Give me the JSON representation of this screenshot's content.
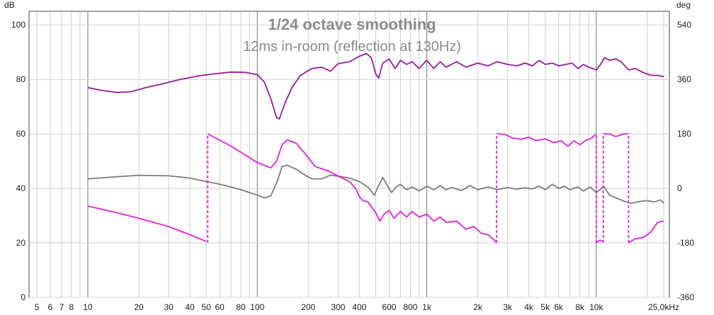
{
  "chart_data": {
    "type": "line",
    "title": "1/24 octave smoothing",
    "subtitle": "12ms in-room (reflection at 130Hz)",
    "left_unit": "dB",
    "right_unit": "deg",
    "xscale": "log",
    "xlim": [
      4.5,
      27000
    ],
    "ylim": [
      0,
      105
    ],
    "y2lim": [
      -360,
      585
    ],
    "grid": true,
    "x_ticks": [
      {
        "v": 5,
        "l": "5"
      },
      {
        "v": 6,
        "l": "6"
      },
      {
        "v": 7,
        "l": "7"
      },
      {
        "v": 8,
        "l": "8"
      },
      {
        "v": 10,
        "l": "10"
      },
      {
        "v": 20,
        "l": "20"
      },
      {
        "v": 30,
        "l": "30"
      },
      {
        "v": 40,
        "l": "40"
      },
      {
        "v": 50,
        "l": "50"
      },
      {
        "v": 60,
        "l": "60"
      },
      {
        "v": 80,
        "l": "80"
      },
      {
        "v": 100,
        "l": "100"
      },
      {
        "v": 200,
        "l": "200"
      },
      {
        "v": 300,
        "l": "300"
      },
      {
        "v": 400,
        "l": "400"
      },
      {
        "v": 600,
        "l": "600"
      },
      {
        "v": 800,
        "l": "800"
      },
      {
        "v": 1000,
        "l": "1k"
      },
      {
        "v": 2000,
        "l": "2k"
      },
      {
        "v": 3000,
        "l": "3k"
      },
      {
        "v": 4000,
        "l": "4k"
      },
      {
        "v": 5000,
        "l": "5k"
      },
      {
        "v": 6000,
        "l": "6k"
      },
      {
        "v": 8000,
        "l": "8k"
      },
      {
        "v": 10000,
        "l": "10k"
      },
      {
        "v": 25000,
        "l": "25,0kHz"
      }
    ],
    "y_ticks": [
      {
        "v": 0,
        "l": "0"
      },
      {
        "v": 20,
        "l": "20"
      },
      {
        "v": 40,
        "l": "40"
      },
      {
        "v": 60,
        "l": "60"
      },
      {
        "v": 80,
        "l": "80"
      },
      {
        "v": 100,
        "l": "100"
      }
    ],
    "y2_ticks": [
      {
        "v": -360,
        "l": "-360"
      },
      {
        "v": -180,
        "l": "-180"
      },
      {
        "v": 0,
        "l": "0"
      },
      {
        "v": 180,
        "l": "180"
      },
      {
        "v": 360,
        "l": "360"
      },
      {
        "v": 540,
        "l": "540"
      }
    ],
    "series": [
      {
        "color": "#9b1a9b",
        "axis": "left",
        "values": [
          [
            10,
            77
          ],
          [
            12,
            76
          ],
          [
            15,
            75.2
          ],
          [
            18,
            75.5
          ],
          [
            22,
            77
          ],
          [
            28,
            78.5
          ],
          [
            35,
            80
          ],
          [
            45,
            81.3
          ],
          [
            55,
            82
          ],
          [
            70,
            82.7
          ],
          [
            85,
            82.6
          ],
          [
            100,
            81.8
          ],
          [
            110,
            79
          ],
          [
            120,
            73
          ],
          [
            130,
            66
          ],
          [
            135,
            65.5
          ],
          [
            145,
            71
          ],
          [
            160,
            77
          ],
          [
            180,
            81.5
          ],
          [
            210,
            84
          ],
          [
            240,
            84.5
          ],
          [
            270,
            83
          ],
          [
            300,
            85.8
          ],
          [
            350,
            86.5
          ],
          [
            400,
            88.5
          ],
          [
            440,
            89.5
          ],
          [
            470,
            88
          ],
          [
            500,
            82
          ],
          [
            520,
            80.5
          ],
          [
            550,
            86
          ],
          [
            600,
            87.5
          ],
          [
            650,
            84
          ],
          [
            700,
            87
          ],
          [
            760,
            85.5
          ],
          [
            820,
            86.5
          ],
          [
            900,
            84
          ],
          [
            1000,
            87
          ],
          [
            1100,
            84
          ],
          [
            1200,
            86.5
          ],
          [
            1300,
            84.5
          ],
          [
            1500,
            86.5
          ],
          [
            1700,
            84.5
          ],
          [
            2000,
            86
          ],
          [
            2300,
            85
          ],
          [
            2600,
            86.5
          ],
          [
            3000,
            85.5
          ],
          [
            3400,
            85
          ],
          [
            3800,
            86
          ],
          [
            4200,
            85
          ],
          [
            4600,
            87
          ],
          [
            5000,
            85.5
          ],
          [
            5500,
            86
          ],
          [
            6000,
            85
          ],
          [
            6600,
            85.5
          ],
          [
            7200,
            86
          ],
          [
            7800,
            84
          ],
          [
            8400,
            85.5
          ],
          [
            9000,
            84.5
          ],
          [
            10000,
            83.5
          ],
          [
            10600,
            85.5
          ],
          [
            11200,
            88
          ],
          [
            12000,
            87
          ],
          [
            13000,
            87.5
          ],
          [
            14000,
            86.5
          ],
          [
            15500,
            83.5
          ],
          [
            17000,
            84
          ],
          [
            19000,
            82.5
          ],
          [
            21000,
            81.5
          ],
          [
            23000,
            81.5
          ],
          [
            25000,
            81
          ]
        ]
      },
      {
        "color": "#7c7c7c",
        "axis": "left",
        "values": [
          [
            10,
            43.5
          ],
          [
            15,
            44.3
          ],
          [
            20,
            44.8
          ],
          [
            30,
            44.6
          ],
          [
            40,
            43.8
          ],
          [
            50,
            42.5
          ],
          [
            60,
            41.5
          ],
          [
            70,
            40.5
          ],
          [
            80,
            39.5
          ],
          [
            100,
            37.5
          ],
          [
            110,
            36.5
          ],
          [
            120,
            37.2
          ],
          [
            130,
            42
          ],
          [
            140,
            48
          ],
          [
            150,
            48.5
          ],
          [
            170,
            47
          ],
          [
            190,
            45
          ],
          [
            210,
            43.5
          ],
          [
            240,
            43.5
          ],
          [
            270,
            44.8
          ],
          [
            300,
            44.5
          ],
          [
            350,
            43.8
          ],
          [
            400,
            42.5
          ],
          [
            450,
            40.5
          ],
          [
            490,
            37.5
          ],
          [
            520,
            41
          ],
          [
            550,
            44
          ],
          [
            580,
            41.5
          ],
          [
            620,
            38.5
          ],
          [
            660,
            40.5
          ],
          [
            700,
            41.5
          ],
          [
            760,
            39.5
          ],
          [
            820,
            40.5
          ],
          [
            900,
            39
          ],
          [
            1000,
            40.8
          ],
          [
            1100,
            39.5
          ],
          [
            1200,
            41
          ],
          [
            1300,
            39.5
          ],
          [
            1400,
            40.3
          ],
          [
            1600,
            39.2
          ],
          [
            1800,
            41
          ],
          [
            2000,
            39.5
          ],
          [
            2300,
            40.5
          ],
          [
            2600,
            39.5
          ],
          [
            3000,
            40.3
          ],
          [
            3400,
            39.7
          ],
          [
            3800,
            40.2
          ],
          [
            4200,
            39.8
          ],
          [
            4600,
            40.8
          ],
          [
            5000,
            39.5
          ],
          [
            5500,
            41.5
          ],
          [
            6000,
            40
          ],
          [
            6500,
            40.8
          ],
          [
            7000,
            39.5
          ],
          [
            7800,
            40.5
          ],
          [
            8400,
            39
          ],
          [
            9200,
            40.5
          ],
          [
            10000,
            38.5
          ],
          [
            10500,
            39.5
          ],
          [
            11000,
            40.8
          ],
          [
            12000,
            37.5
          ],
          [
            13000,
            36.5
          ],
          [
            14000,
            35.8
          ],
          [
            15000,
            35
          ],
          [
            16000,
            34.5
          ],
          [
            18000,
            35.2
          ],
          [
            20000,
            35.5
          ],
          [
            22000,
            35
          ],
          [
            24000,
            35.8
          ],
          [
            25000,
            34.5
          ]
        ]
      },
      {
        "color": "#e41ee4",
        "axis": "left",
        "dashed": [
          [
            51,
            20
          ],
          [
            51,
            60
          ],
          [
            2580,
            20
          ],
          [
            2580,
            60
          ],
          [
            10000,
            20
          ],
          [
            10000,
            60
          ],
          [
            11000,
            20
          ],
          [
            11000,
            60
          ],
          [
            15500,
            20
          ],
          [
            15500,
            60
          ]
        ],
        "values": [
          [
            10,
            33.5
          ],
          [
            15,
            31
          ],
          [
            20,
            29
          ],
          [
            30,
            26
          ],
          [
            40,
            23
          ],
          [
            50,
            20.5
          ],
          [
            null,
            null
          ],
          [
            51,
            60
          ],
          [
            70,
            55.5
          ],
          [
            100,
            49.5
          ],
          [
            120,
            47.5
          ],
          [
            130,
            50
          ],
          [
            140,
            56
          ],
          [
            150,
            57.8
          ],
          [
            170,
            56.5
          ],
          [
            190,
            53
          ],
          [
            220,
            48
          ],
          [
            260,
            46.5
          ],
          [
            300,
            44.5
          ],
          [
            350,
            42.5
          ],
          [
            380,
            40
          ],
          [
            400,
            37
          ],
          [
            420,
            35.5
          ],
          [
            450,
            35
          ],
          [
            500,
            31
          ],
          [
            530,
            28
          ],
          [
            560,
            30.5
          ],
          [
            600,
            32
          ],
          [
            640,
            29
          ],
          [
            700,
            31.5
          ],
          [
            760,
            29.5
          ],
          [
            820,
            31.5
          ],
          [
            900,
            29.5
          ],
          [
            1000,
            30.5
          ],
          [
            1100,
            28
          ],
          [
            1200,
            29.5
          ],
          [
            1300,
            27.5
          ],
          [
            1500,
            28
          ],
          [
            1700,
            25
          ],
          [
            1900,
            26
          ],
          [
            2100,
            23.5
          ],
          [
            2300,
            23
          ],
          [
            2500,
            21
          ],
          [
            2580,
            20
          ],
          [
            null,
            null
          ],
          [
            2580,
            60
          ],
          [
            2900,
            59.8
          ],
          [
            3200,
            58.5
          ],
          [
            3600,
            58
          ],
          [
            4000,
            58.8
          ],
          [
            4400,
            57.5
          ],
          [
            5000,
            58.2
          ],
          [
            5600,
            56.8
          ],
          [
            6200,
            57.5
          ],
          [
            6800,
            55.5
          ],
          [
            7400,
            57.5
          ],
          [
            8000,
            56
          ],
          [
            8600,
            57.5
          ],
          [
            9400,
            58.5
          ],
          [
            10000,
            60
          ],
          [
            null,
            null
          ],
          [
            10000,
            20
          ],
          [
            10500,
            21
          ],
          [
            11000,
            20.5
          ],
          [
            null,
            null
          ],
          [
            11000,
            60
          ],
          [
            12000,
            60
          ],
          [
            13000,
            59
          ],
          [
            14500,
            60
          ],
          [
            15500,
            60
          ],
          [
            null,
            null
          ],
          [
            15500,
            20
          ],
          [
            17000,
            21.5
          ],
          [
            19000,
            22
          ],
          [
            21000,
            24
          ],
          [
            23000,
            27.5
          ],
          [
            25000,
            28
          ]
        ]
      }
    ]
  }
}
